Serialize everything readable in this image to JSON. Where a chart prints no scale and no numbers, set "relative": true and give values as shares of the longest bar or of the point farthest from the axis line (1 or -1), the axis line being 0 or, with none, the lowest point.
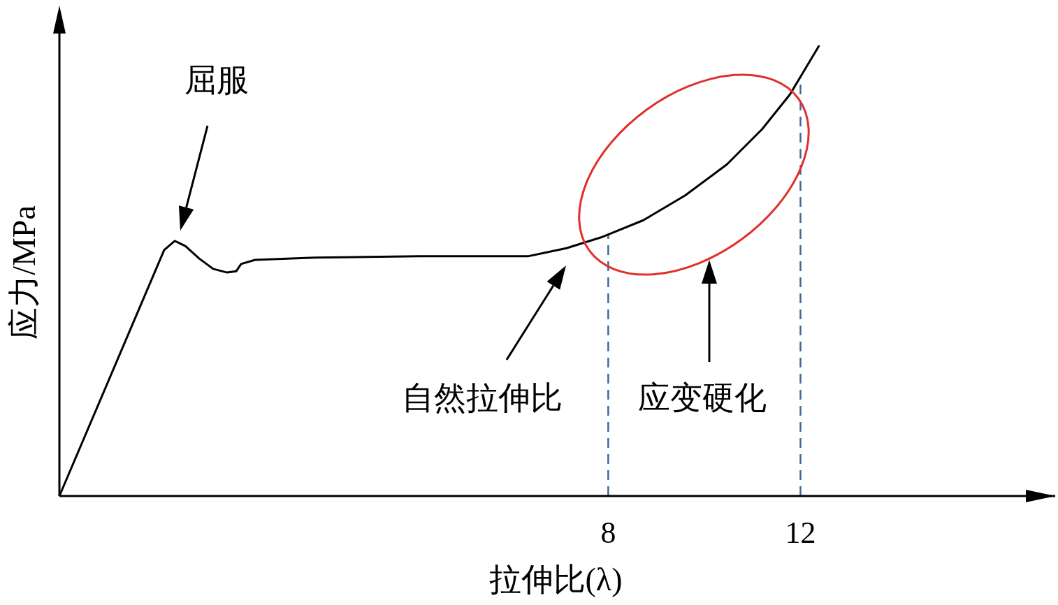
{
  "chart_data": {
    "type": "line",
    "relative": true,
    "xlabel": "拉伸比(λ)",
    "ylabel": "应力/MPa",
    "xlim": [
      -3.42,
      17.3
    ],
    "xticks": [
      8,
      12
    ],
    "x": [
      -3.42,
      -1.24,
      -1.02,
      -0.8,
      -0.51,
      -0.22,
      0.07,
      0.26,
      0.36,
      0.65,
      1.89,
      4.07,
      6.33,
      7.13,
      7.85,
      8.73,
      9.6,
      10.47,
      11.2,
      11.78,
      12.39
    ],
    "series": [
      {
        "color": "#000000",
        "values": [
          0,
          0.546,
          0.566,
          0.555,
          0.527,
          0.504,
          0.496,
          0.499,
          0.515,
          0.524,
          0.529,
          0.532,
          0.532,
          0.55,
          0.574,
          0.612,
          0.667,
          0.736,
          0.814,
          0.891,
          1
        ]
      }
    ],
    "ref_lines": [
      {
        "axis": "x",
        "value": 8,
        "color": "#3f679e",
        "line_style": "dashed"
      },
      {
        "axis": "x",
        "value": 12,
        "color": "#3f679e",
        "line_style": "dashed"
      }
    ],
    "annotations": [
      "屈服",
      "自然拉伸比",
      "应变硬化"
    ]
  }
}
